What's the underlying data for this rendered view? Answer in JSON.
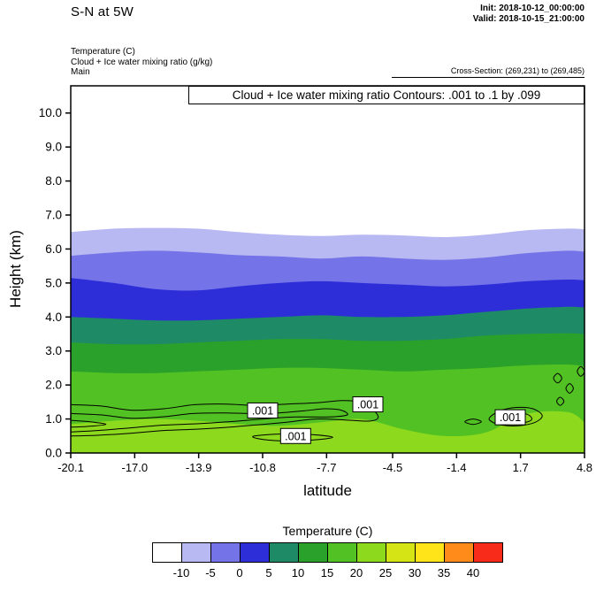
{
  "header": {
    "title": "S-N at 5W",
    "init_line": "Init: 2018-10-12_00:00:00",
    "valid_line": "Valid: 2018-10-15_21:00:00",
    "param_lines": [
      "Temperature (C)",
      "Cloud + Ice water mixing ratio (g/kg)",
      "Main"
    ],
    "cross_section": "Cross-Section: (269,231) to (269,485)"
  },
  "plot": {
    "inner_title": "Cloud + Ice water mixing ratio Contours: .001 to .1 by .099",
    "xlabel": "latitude",
    "ylabel": "Height (km)"
  },
  "legend": {
    "title": "Temperature (C)",
    "cell_colors": [
      "#ffffff",
      "#b8b8f2",
      "#7474e8",
      "#2e2ed8",
      "#1f8a66",
      "#2aa12a",
      "#52c123",
      "#8cd91e",
      "#d4e414",
      "#ffe41a",
      "#ff8c1a",
      "#f82a1a"
    ],
    "tick_labels": [
      "-10",
      "-5",
      "0",
      "5",
      "10",
      "15",
      "20",
      "25",
      "30",
      "35",
      "40"
    ]
  },
  "chart_data": {
    "type": "heatmap",
    "subtype": "filled-contour-cross-section",
    "title": "S-N at 5W",
    "xlabel": "latitude",
    "ylabel": "Height (km)",
    "xlim": [
      -20.1,
      4.8
    ],
    "ylim": [
      0,
      10.8
    ],
    "x_ticks": [
      -20.1,
      -17.0,
      -13.9,
      -10.8,
      -7.7,
      -4.5,
      -1.4,
      1.7,
      4.8
    ],
    "x_tick_labels": [
      "-20.1",
      "-17.0",
      "-13.9",
      "-10.8",
      "-7.7",
      "-4.5",
      "-1.4",
      "1.7",
      "4.8"
    ],
    "y_ticks": [
      0,
      1,
      2,
      3,
      4,
      5,
      6,
      7,
      8,
      9,
      10
    ],
    "y_tick_labels": [
      "0.0",
      "1.0",
      "2.0",
      "3.0",
      "4.0",
      "5.0",
      "6.0",
      "7.0",
      "8.0",
      "9.0",
      "10.0"
    ],
    "background_temp_color": "#ffffff",
    "sample_lats": [
      -20.1,
      -18,
      -16,
      -14,
      -12,
      -10,
      -8,
      -6,
      -4,
      -2,
      0,
      2,
      4,
      4.8
    ],
    "temperature_bands": [
      {
        "temp_min": -10,
        "temp_max": -5,
        "color": "#b8b8f2",
        "top_heights_km": [
          6.5,
          6.6,
          6.62,
          6.6,
          6.5,
          6.42,
          6.38,
          6.42,
          6.4,
          6.35,
          6.42,
          6.55,
          6.6,
          6.58
        ]
      },
      {
        "temp_min": -5,
        "temp_max": 0,
        "color": "#7474e8",
        "top_heights_km": [
          5.8,
          5.9,
          5.95,
          5.9,
          5.82,
          5.78,
          5.72,
          5.78,
          5.72,
          5.68,
          5.75,
          5.88,
          5.95,
          5.92
        ]
      },
      {
        "temp_min": 0,
        "temp_max": 5,
        "color": "#2e2ed8",
        "top_heights_km": [
          5.15,
          5.0,
          4.82,
          4.78,
          4.9,
          5.0,
          5.05,
          5.0,
          4.95,
          4.9,
          4.95,
          5.05,
          5.1,
          5.08
        ]
      },
      {
        "temp_min": 5,
        "temp_max": 10,
        "color": "#1f8a66",
        "top_heights_km": [
          4.0,
          3.95,
          3.9,
          3.9,
          3.95,
          4.0,
          4.05,
          4.0,
          4.0,
          4.05,
          4.15,
          4.25,
          4.3,
          4.28
        ]
      },
      {
        "temp_min": 10,
        "temp_max": 15,
        "color": "#2aa12a",
        "top_heights_km": [
          3.25,
          3.2,
          3.2,
          3.25,
          3.3,
          3.35,
          3.35,
          3.3,
          3.3,
          3.35,
          3.45,
          3.5,
          3.52,
          3.5
        ]
      },
      {
        "temp_min": 15,
        "temp_max": 20,
        "color": "#52c123",
        "top_heights_km": [
          2.4,
          2.35,
          2.35,
          2.4,
          2.45,
          2.5,
          2.5,
          2.45,
          2.4,
          2.45,
          2.5,
          2.58,
          2.6,
          2.55
        ]
      },
      {
        "temp_min": 20,
        "temp_max": 25,
        "color": "#8cd91e",
        "top_heights_km": [
          0.85,
          0.95,
          1.0,
          0.95,
          0.85,
          0.8,
          0.9,
          1.0,
          0.7,
          0.5,
          0.6,
          1.15,
          1.2,
          0.9
        ]
      }
    ],
    "cloud_contours": {
      "level_label": ".001",
      "contour_spec": ".001 to .1 by .099",
      "paths": [
        {
          "closed": false,
          "pts": [
            [
              -20.1,
              1.42
            ],
            [
              -18.6,
              1.38
            ],
            [
              -17.2,
              1.26
            ],
            [
              -15.6,
              1.3
            ],
            [
              -14.1,
              1.42
            ],
            [
              -12.6,
              1.44
            ],
            [
              -11.1,
              1.4
            ],
            [
              -9.6,
              1.44
            ],
            [
              -8.1,
              1.48
            ],
            [
              -7.0,
              1.54
            ],
            [
              -6.1,
              1.5
            ],
            [
              -5.5,
              1.3
            ],
            [
              -5.2,
              1.05
            ],
            [
              -5.6,
              0.94
            ],
            [
              -6.8,
              0.97
            ],
            [
              -8.2,
              1.0
            ],
            [
              -9.4,
              0.92
            ],
            [
              -10.8,
              0.84
            ],
            [
              -12.4,
              0.76
            ],
            [
              -14.0,
              0.7
            ],
            [
              -15.6,
              0.66
            ],
            [
              -17.2,
              0.58
            ],
            [
              -18.8,
              0.52
            ],
            [
              -20.1,
              0.5
            ]
          ]
        },
        {
          "closed": false,
          "pts": [
            [
              -20.1,
              1.16
            ],
            [
              -18.6,
              1.12
            ],
            [
              -17.2,
              1.02
            ],
            [
              -15.7,
              1.06
            ],
            [
              -14.2,
              1.16
            ],
            [
              -12.8,
              1.18
            ],
            [
              -11.4,
              1.16
            ],
            [
              -10.0,
              1.18
            ],
            [
              -8.8,
              1.24
            ],
            [
              -7.8,
              1.3
            ],
            [
              -7.0,
              1.26
            ],
            [
              -6.7,
              1.12
            ],
            [
              -7.6,
              1.06
            ],
            [
              -9.2,
              1.06
            ],
            [
              -10.8,
              1.0
            ],
            [
              -12.4,
              0.92
            ],
            [
              -14.0,
              0.86
            ],
            [
              -15.6,
              0.82
            ],
            [
              -17.2,
              0.74
            ],
            [
              -18.8,
              0.66
            ],
            [
              -20.1,
              0.62
            ]
          ]
        },
        {
          "closed": false,
          "pts": [
            [
              -20.1,
              0.96
            ],
            [
              -19.2,
              0.92
            ],
            [
              -18.4,
              0.84
            ],
            [
              -19.3,
              0.78
            ],
            [
              -20.1,
              0.76
            ]
          ]
        },
        {
          "closed": true,
          "pts": [
            [
              -11.2,
              0.5
            ],
            [
              -9.8,
              0.56
            ],
            [
              -8.4,
              0.54
            ],
            [
              -7.4,
              0.46
            ],
            [
              -8.4,
              0.38
            ],
            [
              -10.0,
              0.36
            ],
            [
              -11.0,
              0.42
            ]
          ]
        },
        {
          "closed": true,
          "pts": [
            [
              0.2,
              1.04
            ],
            [
              0.7,
              1.24
            ],
            [
              1.5,
              1.34
            ],
            [
              2.3,
              1.3
            ],
            [
              2.75,
              1.1
            ],
            [
              2.4,
              0.9
            ],
            [
              1.6,
              0.8
            ],
            [
              0.8,
              0.82
            ],
            [
              0.3,
              0.92
            ]
          ]
        },
        {
          "closed": true,
          "pts": [
            [
              0.85,
              1.04
            ],
            [
              1.35,
              1.16
            ],
            [
              2.0,
              1.14
            ],
            [
              2.25,
              1.0
            ],
            [
              1.95,
              0.9
            ],
            [
              1.3,
              0.88
            ],
            [
              0.9,
              0.94
            ]
          ]
        },
        {
          "closed": true,
          "pts": [
            [
              3.3,
              2.2
            ],
            [
              3.5,
              2.34
            ],
            [
              3.7,
              2.2
            ],
            [
              3.5,
              2.06
            ]
          ]
        },
        {
          "closed": true,
          "pts": [
            [
              3.9,
              1.9
            ],
            [
              4.08,
              2.04
            ],
            [
              4.26,
              1.9
            ],
            [
              4.08,
              1.76
            ]
          ]
        },
        {
          "closed": true,
          "pts": [
            [
              4.45,
              2.4
            ],
            [
              4.62,
              2.54
            ],
            [
              4.8,
              2.4
            ],
            [
              4.62,
              2.26
            ]
          ]
        },
        {
          "closed": true,
          "pts": [
            [
              3.45,
              1.52
            ],
            [
              3.62,
              1.64
            ],
            [
              3.8,
              1.52
            ],
            [
              3.62,
              1.4
            ]
          ]
        },
        {
          "closed": true,
          "pts": [
            [
              -1.0,
              0.92
            ],
            [
              -0.6,
              1.0
            ],
            [
              -0.2,
              0.92
            ],
            [
              -0.6,
              0.84
            ]
          ]
        }
      ],
      "labels": [
        {
          "lat": -10.8,
          "km": 1.25
        },
        {
          "lat": -5.7,
          "km": 1.43
        },
        {
          "lat": -9.2,
          "km": 0.5
        },
        {
          "lat": 1.2,
          "km": 1.05
        }
      ]
    }
  }
}
